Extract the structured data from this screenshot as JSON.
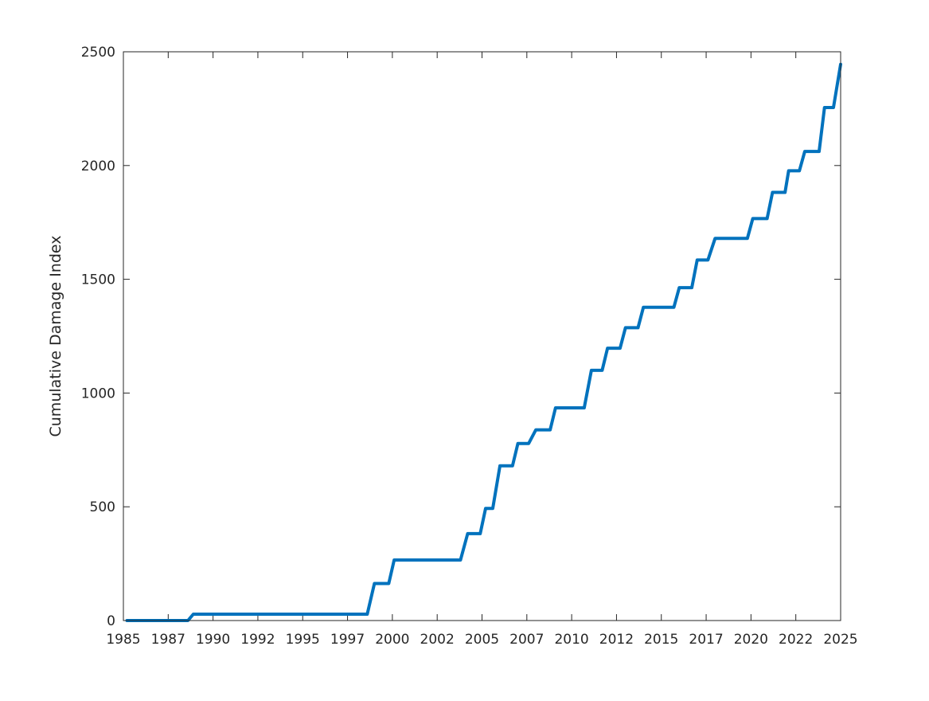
{
  "chart_data": {
    "type": "line",
    "title": "",
    "xlabel": "",
    "ylabel": "Cumulative Damage Index",
    "xlim": [
      1985,
      2025
    ],
    "ylim": [
      0,
      2500
    ],
    "x_tick_labels": [
      "1985",
      "1987",
      "1990",
      "1992",
      "1995",
      "1997",
      "2000",
      "2002",
      "2005",
      "2007",
      "2010",
      "2012",
      "2015",
      "2017",
      "2020",
      "2022",
      "2025"
    ],
    "y_tick_labels": [
      "0",
      "500",
      "1000",
      "1500",
      "2000",
      "2500"
    ],
    "grid": false,
    "box": true,
    "line_color": "#0072BD",
    "series": [
      {
        "x": [
          1985.2,
          1988.6,
          1988.9,
          1998.6,
          1999.0,
          1999.8,
          2000.1,
          2003.8,
          2004.2,
          2004.9,
          2005.2,
          2005.6,
          2006.0,
          2006.7,
          2007.0,
          2007.6,
          2008.0,
          2008.8,
          2009.1,
          2010.7,
          2011.1,
          2011.7,
          2012.0,
          2012.7,
          2013.0,
          2013.7,
          2014.0,
          2015.7,
          2016.0,
          2016.7,
          2017.0,
          2017.6,
          2018.0,
          2019.8,
          2020.1,
          2020.9,
          2021.2,
          2021.9,
          2022.1,
          2022.7,
          2023.0,
          2023.8,
          2024.1,
          2024.6,
          2025.0
        ],
        "y": [
          0,
          0,
          28,
          28,
          163,
          163,
          266,
          266,
          382,
          382,
          493,
          493,
          680,
          680,
          778,
          778,
          838,
          838,
          935,
          935,
          1100,
          1100,
          1197,
          1197,
          1287,
          1287,
          1377,
          1377,
          1463,
          1463,
          1585,
          1585,
          1680,
          1680,
          1767,
          1767,
          1882,
          1882,
          1977,
          1977,
          2062,
          2062,
          2255,
          2255,
          2445
        ]
      }
    ]
  }
}
